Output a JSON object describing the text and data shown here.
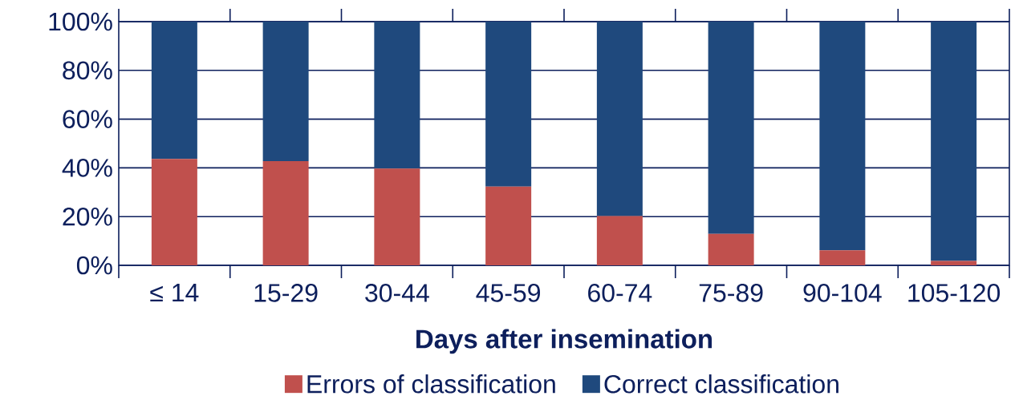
{
  "chart_data": {
    "type": "bar",
    "stacked": true,
    "xlabel": "Days after insemination",
    "categories": [
      "≤ 14",
      "15-29",
      "30-44",
      "45-59",
      "60-74",
      "75-89",
      "90-104",
      "105-120"
    ],
    "series": [
      {
        "name": "Errors of classification",
        "color": "#c0504d",
        "values": [
          43.7,
          42.8,
          39.7,
          32.3,
          20.2,
          12.9,
          6.2,
          1.8
        ]
      },
      {
        "name": "Correct classification",
        "color": "#1f497d",
        "values": [
          56.3,
          57.2,
          60.3,
          67.7,
          79.8,
          87.1,
          93.8,
          98.2
        ]
      }
    ],
    "ylim": [
      0,
      100
    ],
    "yticks": [
      {
        "value": 0,
        "label": "0%"
      },
      {
        "value": 20,
        "label": "20%"
      },
      {
        "value": 40,
        "label": "40%"
      },
      {
        "value": 60,
        "label": "60%"
      },
      {
        "value": 80,
        "label": "80%"
      },
      {
        "value": 100,
        "label": "100%"
      }
    ],
    "grid": "y",
    "legend": "bottom"
  }
}
